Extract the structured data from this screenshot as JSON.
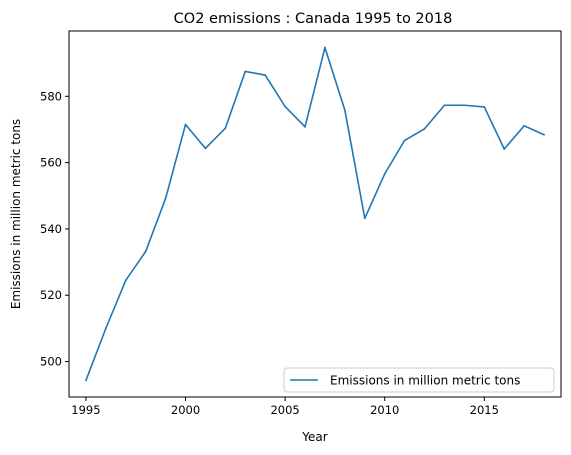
{
  "chart_data": {
    "type": "line",
    "title": "CO2 emissions : Canada 1995 to 2018",
    "xlabel": "Year",
    "ylabel": "Emissions in million metric tons",
    "x": [
      1995,
      1996,
      1997,
      1998,
      1999,
      2000,
      2001,
      2002,
      2003,
      2004,
      2005,
      2006,
      2007,
      2008,
      2009,
      2010,
      2011,
      2012,
      2013,
      2014,
      2015,
      2016,
      2017,
      2018
    ],
    "series": [
      {
        "name": "Emissions in million metric tons",
        "color": "#1f77b4",
        "values": [
          494.3,
          510,
          524.5,
          533.2,
          549.2,
          571.5,
          564.3,
          570.4,
          587.5,
          586.4,
          576.9,
          570.8,
          594.7,
          575.8,
          543.2,
          556.6,
          566.7,
          570.2,
          577.3,
          577.3,
          576.8,
          564.1,
          571.1,
          568.4
        ]
      }
    ],
    "xlim": [
      1994.15,
      2018.85
    ],
    "ylim": [
      489.3,
      599.7
    ],
    "xticks": [
      1995,
      2000,
      2005,
      2010,
      2015
    ],
    "yticks": [
      500,
      520,
      540,
      560,
      580
    ],
    "legend_position": "lower-right",
    "grid": false
  }
}
